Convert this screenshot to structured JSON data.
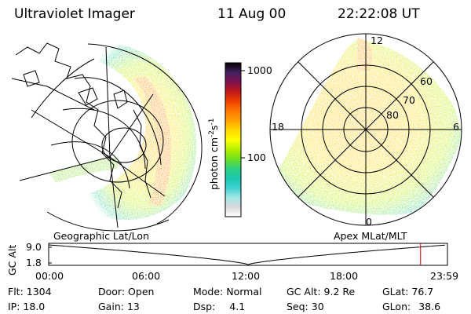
{
  "header": {
    "instrument": "Ultraviolet Imager",
    "date": "11 Aug 00",
    "time": "22:22:08 UT"
  },
  "panels": {
    "left_title": "Geographic Lat/Lon",
    "right_title": "Apex MLat/MLT",
    "polar_lat_labels": [
      "60",
      "70",
      "80"
    ],
    "polar_mlt_labels": [
      "12",
      "18",
      "6",
      "0"
    ]
  },
  "colorbar": {
    "label": "photon cm",
    "label_exp1": "-2",
    "label_mid": "s",
    "label_exp2": "-1",
    "tick_labels": [
      "1000",
      "100"
    ],
    "colors": [
      "#ffffff",
      "#d8d8d8",
      "#a0e8e8",
      "#40d0d0",
      "#18c8b0",
      "#30d080",
      "#70e020",
      "#b8f000",
      "#ffff00",
      "#ffd800",
      "#ffa000",
      "#ff7800",
      "#f04000",
      "#c01818",
      "#801050",
      "#402060",
      "#000000"
    ]
  },
  "timeline": {
    "y_label": "GC Alt",
    "y_ticks": [
      "9.0",
      "1.8"
    ],
    "x_ticks": [
      "00:00",
      "06:00",
      "12:00",
      "18:00",
      "23:59"
    ],
    "marker_time": "22:22",
    "marker_color": "#cc0000"
  },
  "footer": {
    "flt_label": "Flt:",
    "flt_value": "1304",
    "ip_label": "IP:",
    "ip_value": "18.0",
    "door_label": "Door:",
    "door_value": "Open",
    "gain_label": "Gain:",
    "gain_value": "13",
    "mode_label": "Mode:",
    "mode_value": "Normal",
    "dsp_label": "Dsp:",
    "dsp_value": "4.1",
    "gcalt_label": "GC Alt:",
    "gcalt_value": "9.2 Re",
    "seq_label": "Seq:",
    "seq_value": "30",
    "glat_label": "GLat:",
    "glat_value": "76.7",
    "glon_label": "GLon:",
    "glon_value": "38.6"
  }
}
